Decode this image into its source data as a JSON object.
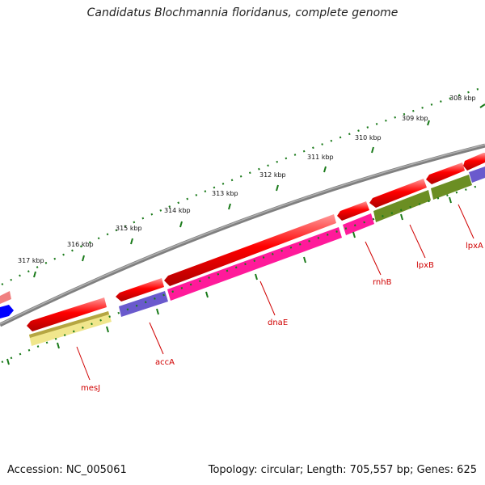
{
  "title": "Candidatus Blochmannia floridanus, complete genome",
  "footer": {
    "accession": "Accession: NC_005061",
    "summary": "Topology: circular; Length: 705,557 bp; Genes: 625"
  },
  "ruler": {
    "labels": [
      "308 kbp",
      "309 kbp",
      "310 kbp",
      "311 kbp",
      "312 kbp",
      "313 kbp",
      "314 kbp",
      "315 kbp",
      "316 kbp",
      "317 kbp"
    ],
    "color": "#1a7a1a"
  },
  "genes": [
    {
      "name": "lpxA",
      "color": "#ff0000"
    },
    {
      "name": "lpxB",
      "color": "#ff0000"
    },
    {
      "name": "rnhB",
      "color": "#ff0000"
    },
    {
      "name": "dnaE",
      "color": "#ff0000"
    },
    {
      "name": "accA",
      "color": "#ff0000"
    },
    {
      "name": "mesJ",
      "color": "#ff0000"
    }
  ],
  "feature_colors": {
    "cds": "#ff0000",
    "pink": "#ff1a9a",
    "purple": "#6a5acd",
    "olive": "#6b8e23",
    "yellow": "#f0e68c",
    "salmon": "#f08080",
    "blue": "#0000ff",
    "backbone": "#808080"
  }
}
